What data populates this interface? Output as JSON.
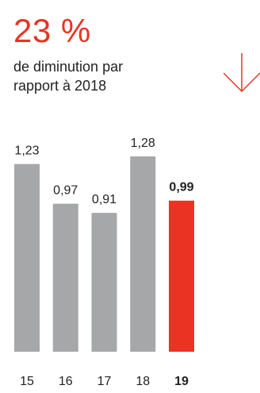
{
  "headline": {
    "value": "23 %",
    "description_line1": "de diminution par",
    "description_line2": "rapport à 2018"
  },
  "trend_icon": "arrow-down-icon",
  "colors": {
    "accent": "#ea3323",
    "bar": "#a6a7a9",
    "text": "#222222",
    "arrow": "#ea3323"
  },
  "chart_data": {
    "type": "bar",
    "categories": [
      "15",
      "16",
      "17",
      "18",
      "19"
    ],
    "values": [
      1.23,
      0.97,
      0.91,
      1.28,
      0.99
    ],
    "value_labels": [
      "1,23",
      "0,97",
      "0,91",
      "1,28",
      "0,99"
    ],
    "highlight_index": 4,
    "title": "",
    "xlabel": "",
    "ylabel": "",
    "ylim": [
      0,
      1.28
    ],
    "grid": false,
    "legend": "none"
  }
}
